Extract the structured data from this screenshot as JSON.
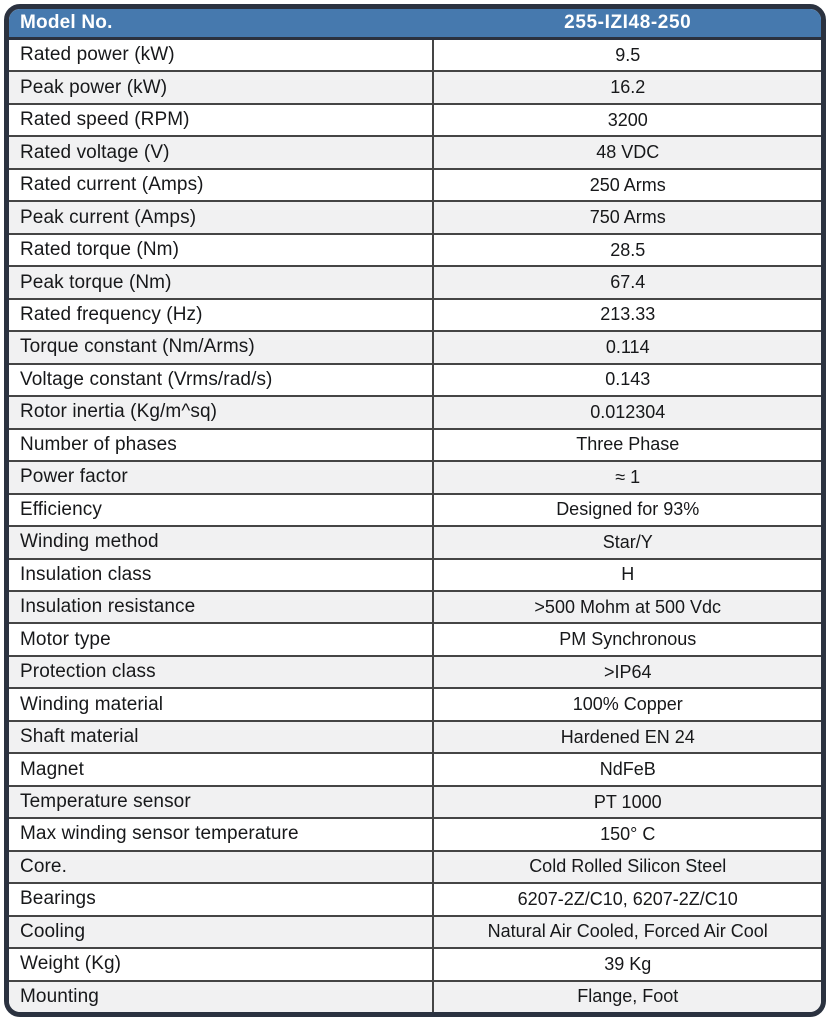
{
  "header": {
    "label": "Model No.",
    "model": "255-IZI48-250"
  },
  "colors": {
    "header_bg": "#4679AE",
    "header_text": "#FFFFFF",
    "frame": "#2B3240",
    "grid": "#454545",
    "alt_row_bg": "#F1F1F2",
    "row_bg": "#FFFFFF",
    "text": "#17181A"
  },
  "table": {
    "rows": [
      {
        "label": "Rated power (kW)",
        "value": "9.5"
      },
      {
        "label": "Peak power (kW)",
        "value": "16.2"
      },
      {
        "label": "Rated speed (RPM)",
        "value": "3200"
      },
      {
        "label": "Rated voltage (V)",
        "value": "48 VDC"
      },
      {
        "label": "Rated current (Amps)",
        "value": "250 Arms"
      },
      {
        "label": "Peak current (Amps)",
        "value": "750 Arms"
      },
      {
        "label": "Rated torque (Nm)",
        "value": "28.5"
      },
      {
        "label": "Peak torque (Nm)",
        "value": "67.4"
      },
      {
        "label": "Rated frequency (Hz)",
        "value": "213.33"
      },
      {
        "label": "Torque constant (Nm/Arms)",
        "value": "0.114"
      },
      {
        "label": "Voltage constant (Vrms/rad/s)",
        "value": "0.143"
      },
      {
        "label": "Rotor inertia (Kg/m^sq)",
        "value": "0.012304"
      },
      {
        "label": "Number of phases",
        "value": "Three Phase"
      },
      {
        "label": "Power factor",
        "value": "≈ 1"
      },
      {
        "label": "Efficiency",
        "value": "Designed for 93%"
      },
      {
        "label": "Winding method",
        "value": "Star/Y"
      },
      {
        "label": "Insulation class",
        "value": "H"
      },
      {
        "label": "Insulation resistance",
        "value": ">500 Mohm at 500 Vdc"
      },
      {
        "label": "Motor type",
        "value": "PM Synchronous"
      },
      {
        "label": "Protection class",
        "value": ">IP64"
      },
      {
        "label": "Winding material",
        "value": "100% Copper"
      },
      {
        "label": "Shaft material",
        "value": "Hardened EN 24"
      },
      {
        "label": "Magnet",
        "value": "NdFeB"
      },
      {
        "label": "Temperature sensor",
        "value": "PT 1000"
      },
      {
        "label": "Max winding sensor temperature",
        "value": "150° C"
      },
      {
        "label": "Core.",
        "value": "Cold Rolled Silicon Steel"
      },
      {
        "label": "Bearings",
        "value": "6207-2Z/C10, 6207-2Z/C10"
      },
      {
        "label": "Cooling",
        "value": "Natural Air Cooled, Forced Air Cool"
      },
      {
        "label": "Weight (Kg)",
        "value": "39 Kg"
      },
      {
        "label": "Mounting",
        "value": "Flange, Foot"
      }
    ]
  }
}
